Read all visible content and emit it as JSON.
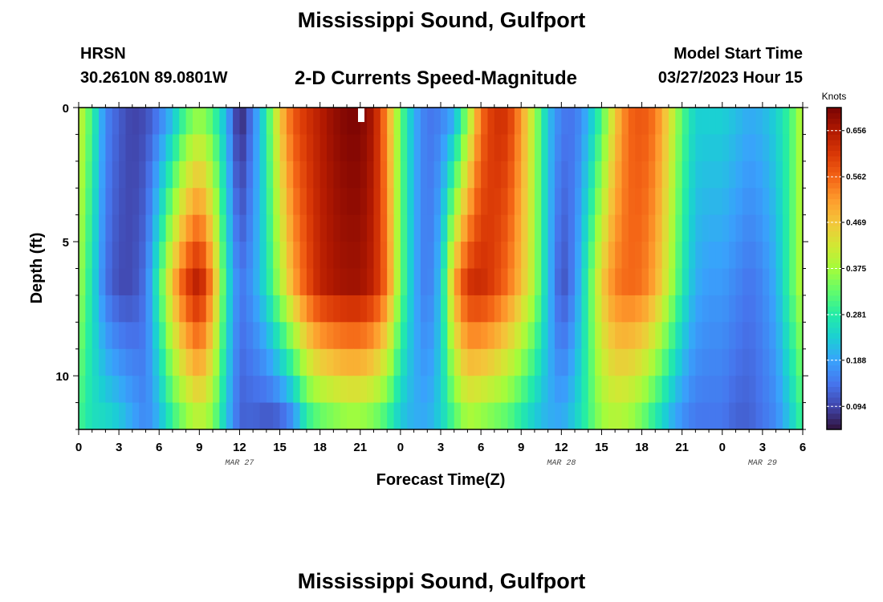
{
  "header": {
    "title": "Mississippi Sound, Gulfport",
    "station": "HRSN",
    "coords": "30.2610N  89.0801W",
    "subtitle": "2-D Currents Speed-Magnitude",
    "model_start_label": "Model Start Time",
    "model_start_value": "03/27/2023 Hour 15"
  },
  "footer": {
    "title": "Mississippi Sound, Gulfport"
  },
  "chart_data": {
    "type": "heatmap",
    "title": "2-D Currents Speed-Magnitude",
    "xlabel": "Forecast Time(Z)",
    "ylabel": "Depth (ft)",
    "x_tick_labels": [
      "0",
      "3",
      "6",
      "9",
      "12",
      "15",
      "18",
      "21",
      "0",
      "3",
      "6",
      "9",
      "12",
      "15",
      "18",
      "21",
      "0",
      "3",
      "6"
    ],
    "x_range_hours": [
      0,
      54
    ],
    "date_labels": [
      {
        "label": "MAR 27",
        "hour": 12
      },
      {
        "label": "MAR 28",
        "hour": 36
      },
      {
        "label": "MAR 29",
        "hour": 51
      }
    ],
    "y_tick_labels": [
      "0",
      "5",
      "10"
    ],
    "y_range_ft": [
      0,
      12
    ],
    "colorbar": {
      "label": "Knots",
      "ticks": [
        "0.656",
        "0.562",
        "0.469",
        "0.375",
        "0.281",
        "0.188",
        "0.094"
      ],
      "tick_values": [
        0.656,
        0.562,
        0.469,
        0.375,
        0.281,
        0.188,
        0.094
      ],
      "range": [
        0.047,
        0.703
      ],
      "colormap": [
        "#30123b",
        "#4145ab",
        "#4675ed",
        "#39a2fc",
        "#1bcfd4",
        "#24eca6",
        "#61fc6c",
        "#a4fc3b",
        "#d1e834",
        "#f3c63a",
        "#fe9b2d",
        "#f36315",
        "#d93806",
        "#b11901",
        "#7a0403"
      ]
    },
    "speed_profile_depth_0_to_12ft": {
      "hours": [
        0,
        1,
        2,
        3,
        4,
        5,
        6,
        7,
        8,
        9,
        10,
        11,
        12,
        13,
        14,
        15,
        16,
        17,
        18,
        19,
        20,
        21,
        22,
        23,
        24,
        25,
        26,
        27,
        28,
        29,
        30,
        31,
        32,
        33,
        34,
        35,
        36,
        37,
        38,
        39,
        40,
        41,
        42,
        43,
        44,
        45,
        46,
        47,
        48,
        49,
        50,
        51,
        52,
        53,
        54
      ],
      "surface_knots": [
        0.42,
        0.3,
        0.16,
        0.12,
        0.09,
        0.1,
        0.14,
        0.2,
        0.3,
        0.35,
        0.3,
        0.2,
        0.05,
        0.15,
        0.28,
        0.47,
        0.58,
        0.62,
        0.65,
        0.68,
        0.7,
        0.7,
        0.66,
        0.52,
        0.33,
        0.2,
        0.14,
        0.15,
        0.18,
        0.35,
        0.55,
        0.62,
        0.62,
        0.52,
        0.38,
        0.22,
        0.15,
        0.14,
        0.2,
        0.3,
        0.46,
        0.56,
        0.58,
        0.55,
        0.45,
        0.32,
        0.24,
        0.24,
        0.24,
        0.22,
        0.2,
        0.21,
        0.24,
        0.3,
        0.4
      ],
      "mid_knots": [
        0.38,
        0.26,
        0.14,
        0.1,
        0.1,
        0.14,
        0.3,
        0.48,
        0.6,
        0.66,
        0.52,
        0.27,
        0.14,
        0.18,
        0.26,
        0.38,
        0.5,
        0.58,
        0.64,
        0.66,
        0.67,
        0.67,
        0.64,
        0.55,
        0.34,
        0.2,
        0.14,
        0.22,
        0.5,
        0.62,
        0.63,
        0.6,
        0.55,
        0.48,
        0.38,
        0.22,
        0.1,
        0.16,
        0.3,
        0.46,
        0.54,
        0.56,
        0.55,
        0.5,
        0.4,
        0.28,
        0.2,
        0.18,
        0.18,
        0.16,
        0.14,
        0.16,
        0.2,
        0.3,
        0.4
      ],
      "bottom_knots": [
        0.3,
        0.26,
        0.26,
        0.24,
        0.2,
        0.16,
        0.2,
        0.28,
        0.34,
        0.38,
        0.34,
        0.22,
        0.12,
        0.12,
        0.1,
        0.1,
        0.14,
        0.26,
        0.3,
        0.32,
        0.34,
        0.34,
        0.32,
        0.28,
        0.22,
        0.2,
        0.2,
        0.24,
        0.3,
        0.36,
        0.34,
        0.32,
        0.3,
        0.26,
        0.22,
        0.2,
        0.2,
        0.24,
        0.3,
        0.36,
        0.38,
        0.36,
        0.32,
        0.26,
        0.2,
        0.16,
        0.14,
        0.14,
        0.14,
        0.12,
        0.12,
        0.14,
        0.16,
        0.22,
        0.3
      ]
    }
  }
}
